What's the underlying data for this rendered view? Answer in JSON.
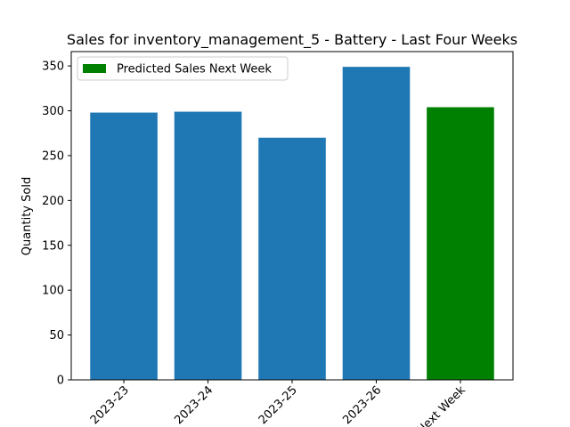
{
  "chart_data": {
    "type": "bar",
    "title": "Sales for inventory_management_5 - Battery - Last Four Weeks",
    "xlabel": "",
    "ylabel": "Quantity Sold",
    "categories": [
      "2023-23",
      "2023-24",
      "2023-25",
      "2023-26",
      "Next Week"
    ],
    "values": [
      298,
      299,
      270,
      349,
      304
    ],
    "bar_colors": [
      "#1f77b4",
      "#1f77b4",
      "#1f77b4",
      "#1f77b4",
      "#008000"
    ],
    "ylim": [
      0,
      366
    ],
    "yticks": [
      0,
      50,
      100,
      150,
      200,
      250,
      300,
      350
    ],
    "xtick_rotation_deg": 45,
    "grid": false,
    "legend": {
      "placement": "top-left",
      "entries": [
        {
          "label": "Predicted Sales Next Week",
          "color": "#008000"
        }
      ]
    }
  }
}
